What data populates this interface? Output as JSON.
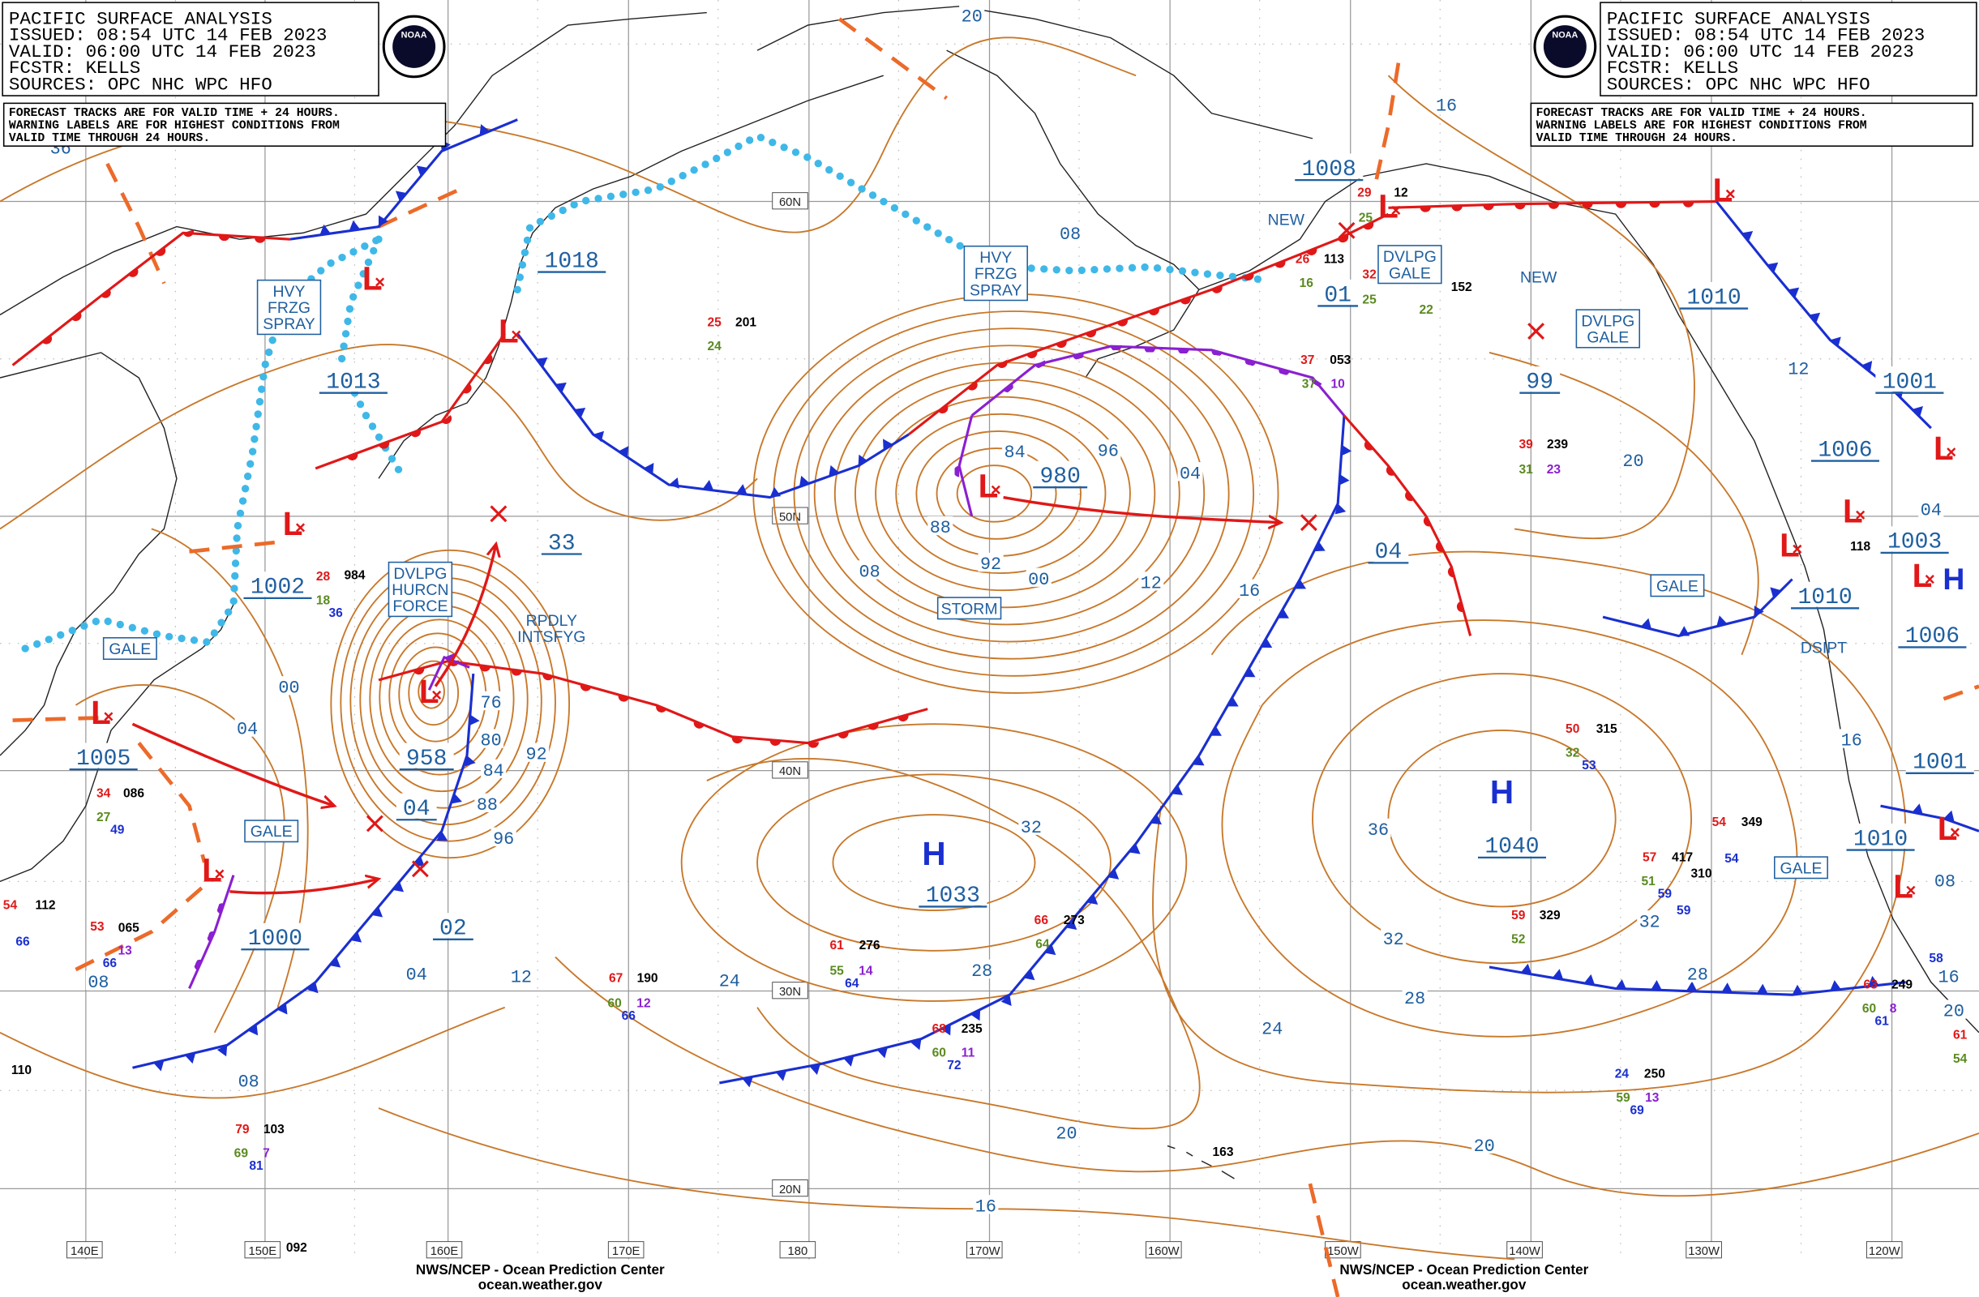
{
  "header_left": {
    "lines": [
      "PACIFIC SURFACE ANALYSIS",
      "ISSUED: 08:54 UTC 14 FEB 2023",
      "VALID:  06:00 UTC 14 FEB 2023",
      "FCSTR:  KELLS",
      "SOURCES: OPC NHC WPC HFO"
    ],
    "note": [
      "FORECAST TRACKS ARE FOR VALID TIME + 24 HOURS.",
      "WARNING LABELS ARE FOR HIGHEST CONDITIONS FROM",
      "VALID TIME THROUGH 24 HOURS."
    ],
    "logo": "NOAA"
  },
  "header_right": {
    "lines": [
      "PACIFIC SURFACE ANALYSIS",
      "ISSUED: 08:54 UTC 14 FEB 2023",
      "VALID:  06:00 UTC 14 FEB 2023",
      "FCSTR:  KELLS",
      "SOURCES: OPC NHC WPC HFO"
    ],
    "note": [
      "FORECAST TRACKS ARE FOR VALID TIME + 24 HOURS.",
      "WARNING LABELS ARE FOR HIGHEST CONDITIONS FROM",
      "VALID TIME THROUGH 24 HOURS."
    ],
    "logo": "NOAA"
  },
  "latitudes": [
    "60N",
    "50N",
    "40N",
    "30N",
    "20N"
  ],
  "longitudes": [
    "140E",
    "150E",
    "160E",
    "170E",
    "180",
    "170W",
    "160W",
    "150W",
    "140W",
    "130W",
    "120W"
  ],
  "low_symbol": "L",
  "high_symbol": "H",
  "center_pressures": [
    "1018",
    "1013",
    "1002",
    "1005",
    "1000",
    "958",
    "04",
    "02",
    "33",
    "980",
    "1033",
    "1040",
    "1008",
    "01",
    "99",
    "04",
    "1010",
    "1001",
    "1006",
    "1003",
    "1010",
    "1006",
    "1001",
    "1010"
  ],
  "isobar_labels": [
    "20",
    "16",
    "08",
    "36",
    "84",
    "96",
    "04",
    "88",
    "92",
    "08",
    "00",
    "12",
    "16",
    "76",
    "80",
    "84",
    "88",
    "92",
    "96",
    "00",
    "04",
    "04",
    "12",
    "08",
    "08",
    "24",
    "28",
    "32",
    "36",
    "32",
    "28",
    "24",
    "20",
    "16",
    "20",
    "32",
    "28",
    "20",
    "12",
    "16",
    "04",
    "08",
    "16",
    "20"
  ],
  "warnings": [
    [
      "HVY",
      "FRZG",
      "SPRAY"
    ],
    [
      "HVY",
      "FRZG",
      "SPRAY"
    ],
    [
      "DVLPG",
      "HURCN",
      "FORCE"
    ],
    [
      "GALE"
    ],
    [
      "GALE"
    ],
    [
      "GALE"
    ],
    [
      "GALE"
    ],
    [
      "DVLPG",
      "GALE"
    ],
    [
      "DVLPG",
      "GALE"
    ],
    [
      "STORM"
    ]
  ],
  "annotations": [
    [
      "RPDLY",
      "INTSFYG"
    ],
    [
      "NEW"
    ],
    [
      "NEW"
    ],
    [
      "DSIPT"
    ]
  ],
  "station_values": [
    "201",
    "25",
    "24",
    "984",
    "28",
    "18",
    "36",
    "086",
    "34",
    "27",
    "49",
    "065",
    "53",
    "66",
    "13",
    "112",
    "54",
    "66",
    "110",
    "190",
    "67",
    "60",
    "12",
    "66",
    "103",
    "79",
    "69",
    "7",
    "81",
    "092",
    "276",
    "61",
    "55",
    "64",
    "14",
    "273",
    "66",
    "64",
    "235",
    "68",
    "60",
    "11",
    "72",
    "163",
    "329",
    "59",
    "52",
    "315",
    "50",
    "32",
    "53",
    "239",
    "39",
    "31",
    "23",
    "349",
    "54",
    "54",
    "417",
    "57",
    "51",
    "310",
    "59",
    "59",
    "250",
    "24",
    "59",
    "13",
    "69",
    "053",
    "37",
    "37",
    "10",
    "113",
    "26",
    "16",
    "12",
    "29",
    "25",
    "152",
    "32",
    "25",
    "22",
    "118",
    "249",
    "63",
    "60",
    "8",
    "61",
    "58",
    "61",
    "54"
  ],
  "footer_left": [
    "NWS/NCEP - Ocean Prediction Center",
    "ocean.weather.gov"
  ],
  "footer_right": [
    "NWS/NCEP - Ocean Prediction Center",
    "ocean.weather.gov"
  ]
}
